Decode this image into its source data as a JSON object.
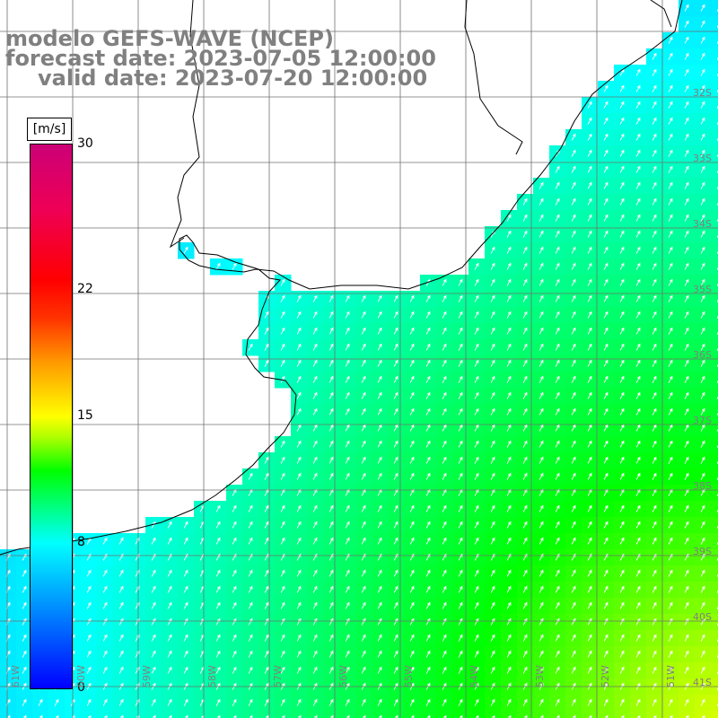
{
  "title": {
    "line1": "modelo GEFS-WAVE (NCEP)",
    "line2": "forecast date: 2023-07-05 12:00:00",
    "line3": "valid date: 2023-07-20 12:00:00"
  },
  "colorbar": {
    "unit": "[m/s]",
    "ticks": [
      "30",
      "22",
      "15",
      "8",
      "0"
    ],
    "min": 0,
    "max": 30,
    "colors": [
      "#0000ff",
      "#00ffff",
      "#00ff00",
      "#ffff00",
      "#ff0000",
      "#cc0077"
    ]
  },
  "grid": {
    "lat_labels": [
      "32S",
      "33S",
      "34S",
      "35S",
      "36S",
      "37S",
      "38S",
      "39S",
      "40S",
      "41S"
    ],
    "lon_labels": [
      "61W",
      "60W",
      "59W",
      "58W",
      "57W",
      "56W",
      "55W",
      "54W",
      "53W",
      "52W",
      "51W"
    ]
  },
  "field": {
    "variable": "wind speed",
    "land_color": "#ffffff",
    "coastline_color": "#000000",
    "arrow_color": "#ffffff"
  }
}
